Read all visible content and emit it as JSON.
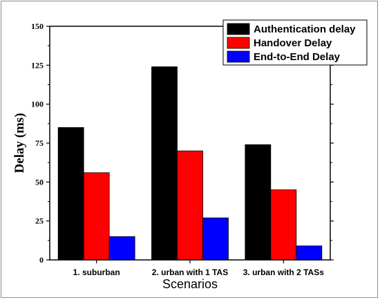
{
  "chart_data": {
    "type": "bar",
    "title": "",
    "xlabel": "Scenarios",
    "ylabel": "Delay (ms)",
    "ylim": [
      0,
      150
    ],
    "yticks": [
      "0",
      "25",
      "50",
      "75",
      "100",
      "125",
      "150"
    ],
    "categories": [
      "1. suburban",
      "2. urban with 1 TAS",
      "3. urban with 2 TASs"
    ],
    "series": [
      {
        "name": "Authentication delay",
        "color": "#000000",
        "values": [
          85,
          124,
          74
        ]
      },
      {
        "name": "Handover Delay",
        "color": "#ff0000",
        "values": [
          56,
          70,
          45
        ]
      },
      {
        "name": "End-to-End Delay",
        "color": "#0000ff",
        "values": [
          15,
          27,
          9
        ]
      }
    ],
    "legend_position": "top-right",
    "grid": false
  }
}
